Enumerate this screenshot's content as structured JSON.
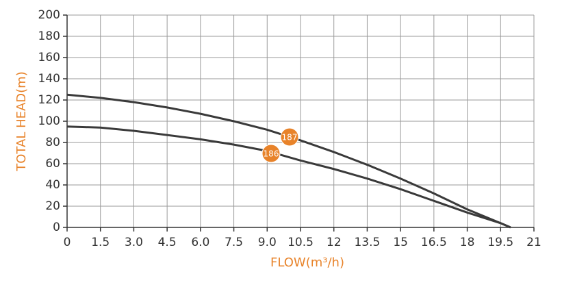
{
  "chart_data": {
    "type": "line",
    "x_label": "FLOW(m³/h)",
    "y_label": "TOTAL HEAD(m)",
    "x": [
      0,
      1.5,
      3,
      4.5,
      6,
      7.5,
      9,
      10.5,
      12,
      13.5,
      15,
      16.5,
      18,
      19.5,
      19.95
    ],
    "series": [
      {
        "name": "187",
        "color": "#3a3a3a",
        "values": [
          125,
          122,
          118,
          113,
          107,
          100,
          92,
          82,
          71,
          59,
          46,
          32,
          17,
          4,
          0
        ]
      },
      {
        "name": "186",
        "color": "#3a3a3a",
        "values": [
          95,
          94,
          91,
          87,
          83,
          78,
          72,
          63,
          55,
          46,
          36,
          25,
          14,
          4,
          0
        ]
      }
    ],
    "xlim": [
      0,
      21
    ],
    "xticks": [
      0,
      1.5,
      {
        "value": 3,
        "label": "3.0"
      },
      4.5,
      {
        "value": 6,
        "label": "6.0"
      },
      7.5,
      {
        "value": 9,
        "label": "9.0"
      },
      10.5,
      12,
      13.5,
      15,
      16.5,
      18,
      19.5,
      21
    ],
    "ylim": [
      0,
      200
    ],
    "yticks": [
      0,
      20,
      40,
      60,
      80,
      100,
      120,
      140,
      160,
      180,
      200
    ],
    "grid": true
  }
}
